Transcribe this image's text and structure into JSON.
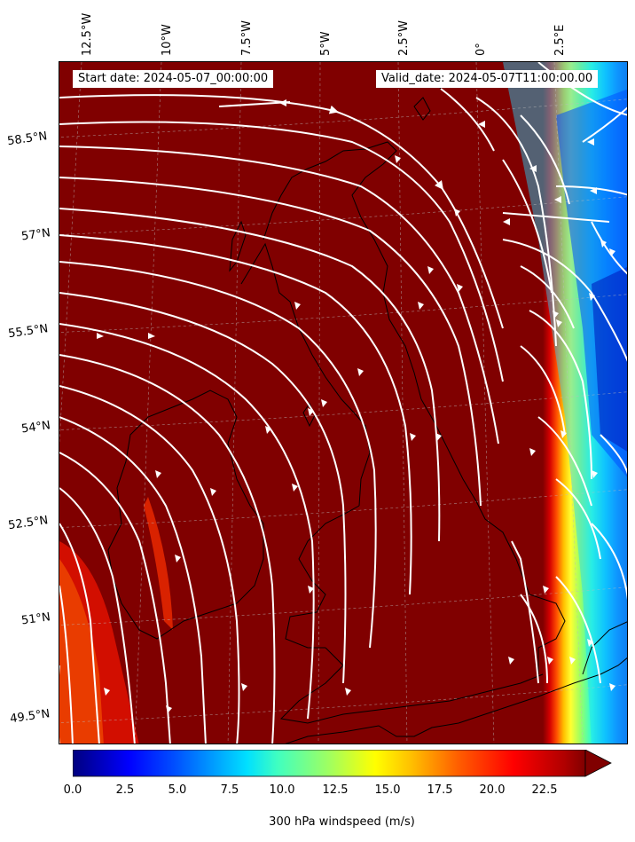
{
  "header": {
    "start_date": "Start date: 2024-05-07_00:00:00",
    "valid_date": "Valid_date: 2024-05-07T11:00:00.00"
  },
  "longitude_labels": [
    "12.5°W",
    "10°W",
    "7.5°W",
    "5°W",
    "2.5°W",
    "0°",
    "2.5°E"
  ],
  "latitude_labels": [
    "58.5°N",
    "57°N",
    "55.5°N",
    "54°N",
    "52.5°N",
    "51°N",
    "49.5°N"
  ],
  "colorbar": {
    "ticks": [
      "0.0",
      "2.5",
      "5.0",
      "7.5",
      "10.0",
      "12.5",
      "15.0",
      "17.5",
      "20.0",
      "22.5"
    ],
    "label": "300 hPa windspeed (m/s)",
    "colormap": "jet",
    "range": [
      0,
      25
    ],
    "extend": "max"
  },
  "colors": {
    "strong_wind": "#800000",
    "streamline": "#ffffff",
    "coastline": "#000000"
  }
}
